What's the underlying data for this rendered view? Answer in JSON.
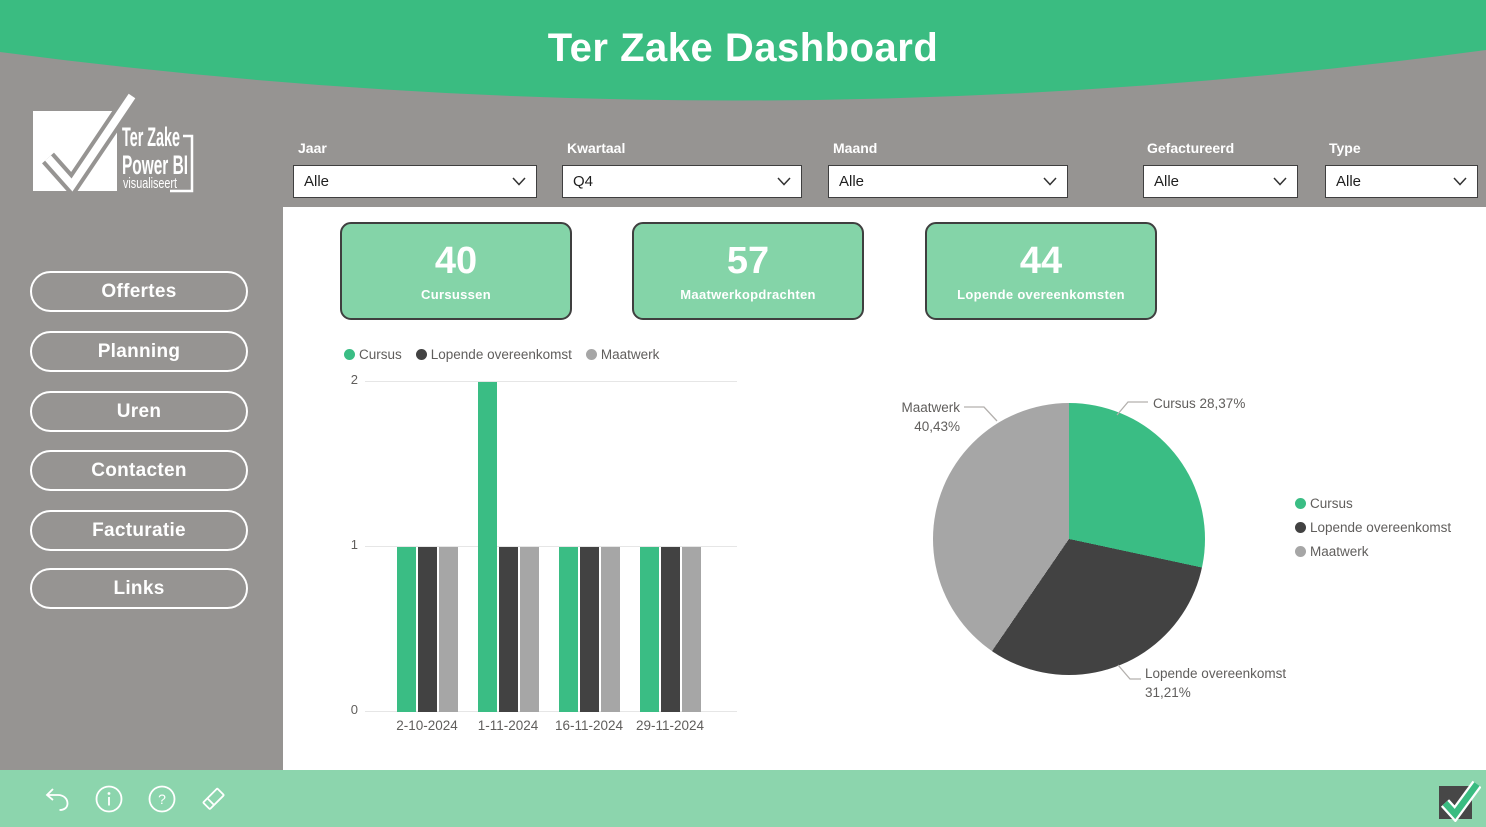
{
  "header": {
    "title": "Ter Zake Dashboard"
  },
  "logo": {
    "line1": "Ter Zake",
    "line2": "Power BI",
    "line3": "visualiseert"
  },
  "filters": [
    {
      "label": "Jaar",
      "value": "Alle"
    },
    {
      "label": "Kwartaal",
      "value": "Q4"
    },
    {
      "label": "Maand",
      "value": "Alle"
    },
    {
      "label": "Gefactureerd",
      "value": "Alle"
    },
    {
      "label": "Type",
      "value": "Alle"
    }
  ],
  "sidebar": {
    "items": [
      {
        "label": "Offertes"
      },
      {
        "label": "Planning"
      },
      {
        "label": "Uren"
      },
      {
        "label": "Contacten"
      },
      {
        "label": "Facturatie"
      },
      {
        "label": "Links"
      }
    ]
  },
  "kpis": [
    {
      "value": "40",
      "label": "Cursussen"
    },
    {
      "value": "57",
      "label": "Maatwerkopdrachten"
    },
    {
      "value": "44",
      "label": "Lopende overeenkomsten"
    }
  ],
  "colors": {
    "header_green": "#3abc81",
    "card_green": "#84d4a8",
    "bottom_bar_green": "#8cd5ad",
    "sidebar_gray": "#969492",
    "series_green": "#3abd84",
    "series_dark": "#424242",
    "series_gray": "#a6a6a6",
    "chart_text": "#605e5c"
  },
  "chart_data": [
    {
      "type": "bar",
      "categories": [
        "2-10-2024",
        "1-11-2024",
        "16-11-2024",
        "29-11-2024"
      ],
      "series": [
        {
          "name": "Cursus",
          "color": "#3abd84",
          "values": [
            1,
            2,
            1,
            1
          ]
        },
        {
          "name": "Lopende overeenkomst",
          "color": "#424242",
          "values": [
            1,
            1,
            1,
            1
          ]
        },
        {
          "name": "Maatwerk",
          "color": "#a6a6a6",
          "values": [
            1,
            1,
            1,
            1
          ]
        }
      ],
      "title": "",
      "xlabel": "",
      "ylabel": "",
      "ylim": [
        0,
        2
      ],
      "yticks": [
        0,
        1,
        2
      ],
      "grid": true,
      "legend_position": "top"
    },
    {
      "type": "pie",
      "slices": [
        {
          "name": "Cursus",
          "value": 28.37,
          "pct_label": "28,37%",
          "color": "#3abd84"
        },
        {
          "name": "Lopende overeenkomst",
          "value": 31.21,
          "pct_label": "31,21%",
          "color": "#424242"
        },
        {
          "name": "Maatwerk",
          "value": 40.43,
          "pct_label": "40,43%",
          "color": "#a6a6a6"
        }
      ],
      "start_angle_deg": 0,
      "direction": "clockwise",
      "legend_position": "right"
    }
  ]
}
